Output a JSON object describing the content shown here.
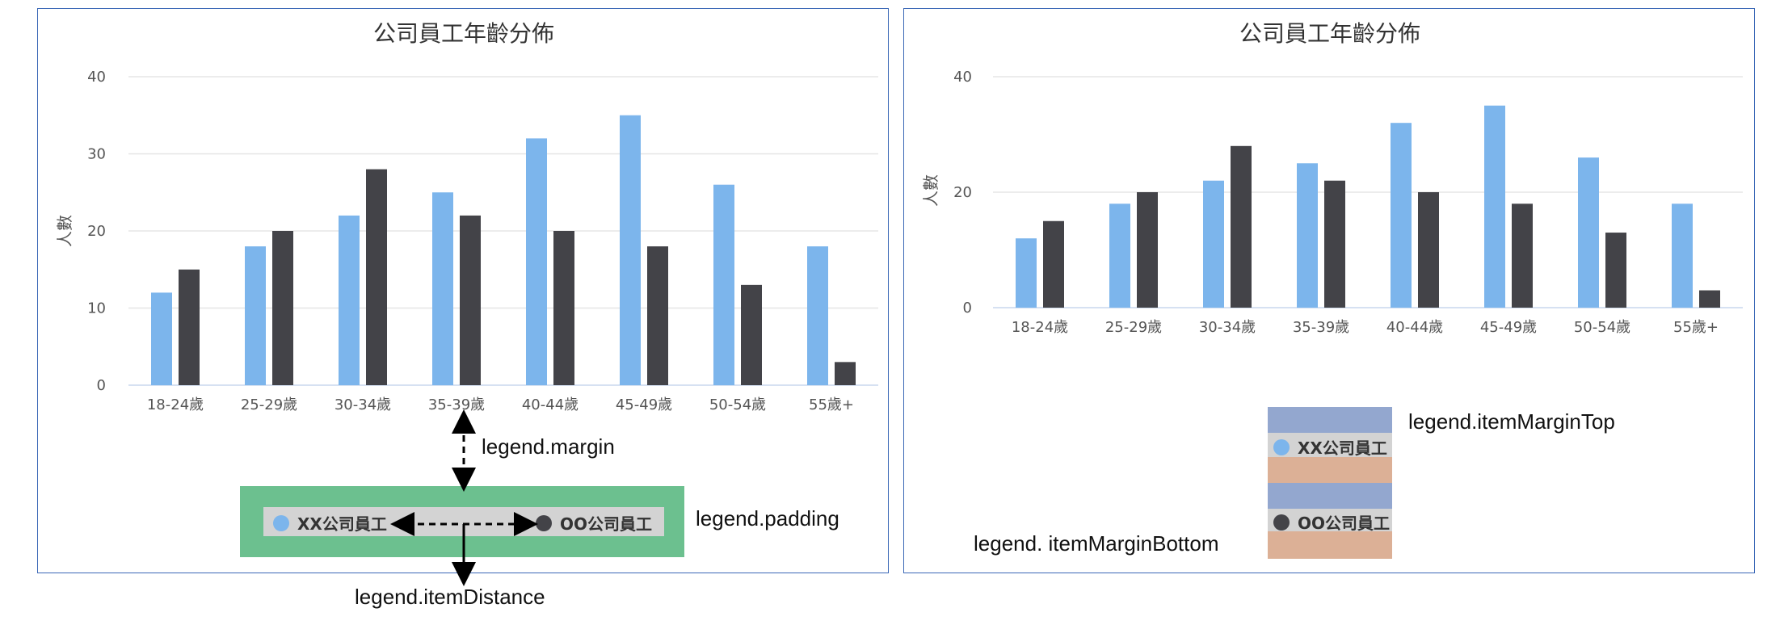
{
  "colors": {
    "series_a": "#7cb5ec",
    "series_b": "#434348",
    "legend_padding_bg": "#6cc08f",
    "legend_inner_bg": "#d3d3d3",
    "margin_top_bg": "#93a7cf",
    "margin_bottom_bg": "#dcb096",
    "border": "#3a67b6"
  },
  "chart_data": [
    {
      "type": "bar",
      "title": "公司員工年齡分佈",
      "xlabel": "",
      "ylabel": "人數",
      "categories": [
        "18-24歲",
        "25-29歲",
        "30-34歲",
        "35-39歲",
        "40-44歲",
        "45-49歲",
        "50-54歲",
        "55歲+"
      ],
      "series": [
        {
          "name": "XX公司員工",
          "values": [
            12,
            18,
            22,
            25,
            32,
            35,
            26,
            18
          ]
        },
        {
          "name": "OO公司員工",
          "values": [
            15,
            20,
            28,
            22,
            20,
            18,
            13,
            3
          ]
        }
      ],
      "ylim": [
        0,
        40
      ],
      "yticks": [
        "0",
        "10",
        "20",
        "30",
        "40"
      ],
      "grid": true,
      "legend": "bottom-center"
    },
    {
      "type": "bar",
      "title": "公司員工年齡分佈",
      "xlabel": "",
      "ylabel": "人數",
      "categories": [
        "18-24歲",
        "25-29歲",
        "30-34歲",
        "35-39歲",
        "40-44歲",
        "45-49歲",
        "50-54歲",
        "55歲+"
      ],
      "series": [
        {
          "name": "XX公司員工",
          "values": [
            12,
            18,
            22,
            25,
            32,
            35,
            26,
            18
          ]
        },
        {
          "name": "OO公司員工",
          "values": [
            15,
            20,
            28,
            22,
            20,
            18,
            13,
            3
          ]
        }
      ],
      "ylim": [
        0,
        40
      ],
      "yticks": [
        "0",
        "20",
        "40"
      ],
      "grid": true,
      "legend": "bottom-center"
    }
  ],
  "annotations": {
    "margin": "legend.margin",
    "padding": "legend.padding",
    "item_distance": "legend.itemDistance",
    "item_margin_top": "legend.itemMarginTop",
    "item_margin_bottom": "legend. itemMarginBottom"
  },
  "legend": {
    "item_a": "XX公司員工",
    "item_b": "OO公司員工"
  }
}
